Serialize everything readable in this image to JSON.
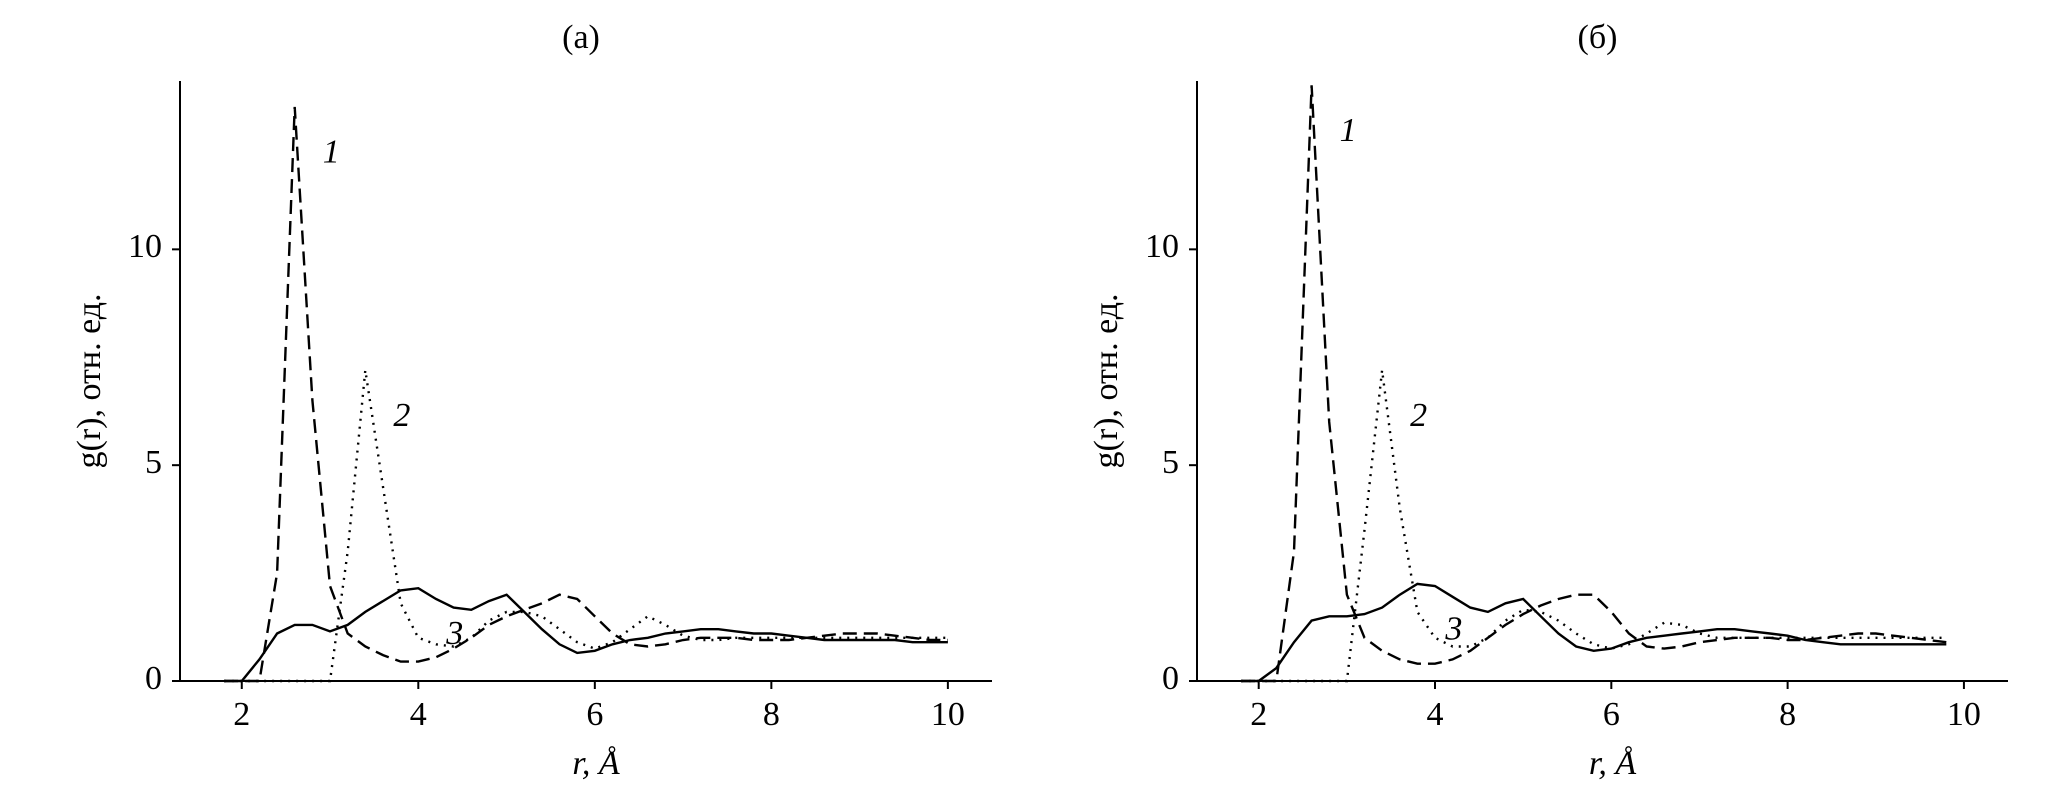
{
  "chart_data": [
    {
      "type": "line",
      "title": "(а)",
      "xlabel": "r, Å",
      "ylabel": "g(r), отн. ед.",
      "xlim": [
        1.3,
        10.5
      ],
      "ylim": [
        0,
        13.9
      ],
      "xticks": [
        2,
        4,
        6,
        8,
        10
      ],
      "yticks": [
        0,
        5,
        10
      ],
      "x": [
        1.8,
        2.0,
        2.2,
        2.4,
        2.6,
        2.8,
        3.0,
        3.2,
        3.4,
        3.6,
        3.8,
        4.0,
        4.2,
        4.4,
        4.6,
        4.8,
        5.0,
        5.2,
        5.4,
        5.6,
        5.8,
        6.0,
        6.2,
        6.4,
        6.6,
        6.8,
        7.0,
        7.2,
        7.4,
        7.6,
        7.8,
        8.0,
        8.2,
        8.4,
        8.6,
        8.8,
        9.0,
        9.2,
        9.4,
        9.6,
        9.8,
        10.0
      ],
      "series": [
        {
          "name": "1",
          "color": "#000000",
          "dash": "dashed",
          "values": [
            0,
            0,
            0,
            2.5,
            13.3,
            6.5,
            2.2,
            1.1,
            0.8,
            0.6,
            0.45,
            0.45,
            0.55,
            0.75,
            1.0,
            1.3,
            1.5,
            1.65,
            1.8,
            2.0,
            1.9,
            1.5,
            1.1,
            0.85,
            0.8,
            0.85,
            0.95,
            1.0,
            1.0,
            1.0,
            0.95,
            0.95,
            0.95,
            1.0,
            1.05,
            1.1,
            1.1,
            1.1,
            1.05,
            1.0,
            0.95,
            0.95
          ]
        },
        {
          "name": "2",
          "color": "#000000",
          "dash": "dotted",
          "values": [
            0,
            0,
            0,
            0,
            0,
            0,
            0,
            3.0,
            7.2,
            4.5,
            1.8,
            1.0,
            0.85,
            0.8,
            1.0,
            1.4,
            1.6,
            1.6,
            1.5,
            1.2,
            0.9,
            0.75,
            0.9,
            1.2,
            1.5,
            1.3,
            1.05,
            0.95,
            0.95,
            1.0,
            1.0,
            1.0,
            1.0,
            1.0,
            1.0,
            1.0,
            1.0,
            1.0,
            1.0,
            1.0,
            1.0,
            1.0
          ]
        },
        {
          "name": "3",
          "color": "#000000",
          "dash": "solid",
          "values": [
            0,
            0,
            0.5,
            1.1,
            1.3,
            1.3,
            1.15,
            1.3,
            1.6,
            1.85,
            2.1,
            2.15,
            1.9,
            1.7,
            1.65,
            1.85,
            2.0,
            1.6,
            1.2,
            0.85,
            0.65,
            0.7,
            0.85,
            0.95,
            1.0,
            1.1,
            1.15,
            1.2,
            1.2,
            1.15,
            1.1,
            1.1,
            1.05,
            1.0,
            0.95,
            0.95,
            0.95,
            0.95,
            0.95,
            0.9,
            0.9,
            0.9
          ]
        }
      ]
    },
    {
      "type": "line",
      "title": "(б)",
      "xlabel": "r, Å",
      "ylabel": "g(r), отн. ед.",
      "xlim": [
        1.3,
        10.5
      ],
      "ylim": [
        0,
        13.9
      ],
      "xticks": [
        2,
        4,
        6,
        8,
        10
      ],
      "yticks": [
        0,
        5,
        10
      ],
      "x": [
        1.8,
        2.0,
        2.2,
        2.4,
        2.6,
        2.8,
        3.0,
        3.2,
        3.4,
        3.6,
        3.8,
        4.0,
        4.2,
        4.4,
        4.6,
        4.8,
        5.0,
        5.2,
        5.4,
        5.6,
        5.8,
        6.0,
        6.2,
        6.4,
        6.6,
        6.8,
        7.0,
        7.2,
        7.4,
        7.6,
        7.8,
        8.0,
        8.2,
        8.4,
        8.6,
        8.8,
        9.0,
        9.2,
        9.4,
        9.6,
        9.8,
        10.0
      ],
      "series": [
        {
          "name": "1",
          "color": "#000000",
          "dash": "dashed",
          "values": [
            0,
            0,
            0,
            3.0,
            13.8,
            6.0,
            2.0,
            1.0,
            0.7,
            0.5,
            0.4,
            0.4,
            0.5,
            0.7,
            1.0,
            1.3,
            1.55,
            1.75,
            1.9,
            2.0,
            2.0,
            1.6,
            1.1,
            0.8,
            0.75,
            0.8,
            0.9,
            0.95,
            1.0,
            1.0,
            1.0,
            0.95,
            0.95,
            1.0,
            1.05,
            1.1,
            1.1,
            1.05,
            1.0,
            0.95,
            0.9,
            null
          ]
        },
        {
          "name": "2",
          "color": "#000000",
          "dash": "dotted",
          "values": [
            0,
            0,
            0,
            0,
            0,
            0,
            0,
            3.5,
            7.2,
            4.0,
            1.6,
            1.0,
            0.8,
            0.8,
            1.0,
            1.4,
            1.65,
            1.6,
            1.4,
            1.1,
            0.85,
            0.75,
            0.85,
            1.1,
            1.35,
            1.3,
            1.1,
            1.0,
            1.0,
            1.0,
            1.0,
            1.0,
            1.0,
            1.0,
            1.0,
            1.0,
            1.0,
            1.0,
            1.0,
            1.0,
            1.0,
            null
          ]
        },
        {
          "name": "3",
          "color": "#000000",
          "dash": "solid",
          "values": [
            0,
            0,
            0.3,
            0.9,
            1.4,
            1.5,
            1.5,
            1.55,
            1.7,
            2.0,
            2.25,
            2.2,
            1.95,
            1.7,
            1.6,
            1.8,
            1.9,
            1.5,
            1.1,
            0.8,
            0.7,
            0.75,
            0.9,
            1.0,
            1.05,
            1.1,
            1.15,
            1.2,
            1.2,
            1.15,
            1.1,
            1.05,
            0.95,
            0.9,
            0.85,
            0.85,
            0.85,
            0.85,
            0.85,
            0.85,
            0.85,
            null
          ]
        }
      ]
    }
  ]
}
